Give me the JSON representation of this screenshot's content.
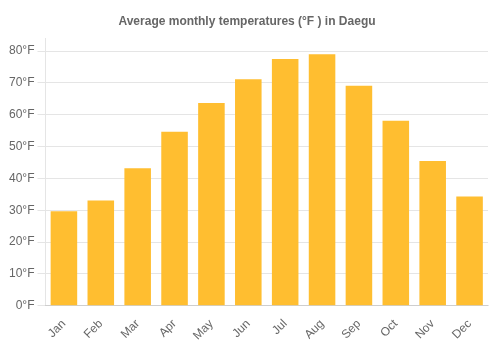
{
  "chart_data": {
    "type": "bar",
    "title": "Average monthly temperatures (°F ) in Daegu",
    "categories": [
      "Jan",
      "Feb",
      "Mar",
      "Apr",
      "May",
      "Jun",
      "Jul",
      "Aug",
      "Sep",
      "Oct",
      "Nov",
      "Dec"
    ],
    "values": [
      29.7,
      33.1,
      43.2,
      54.7,
      63.7,
      71.2,
      77.5,
      79.0,
      69.1,
      58.1,
      45.5,
      34.3
    ],
    "color": "#FFBE30",
    "ylim": [
      0,
      84
    ],
    "yticks": [
      {
        "value": 0,
        "label": "0°F"
      },
      {
        "value": 10,
        "label": "10°F"
      },
      {
        "value": 20,
        "label": "20°F"
      },
      {
        "value": 30,
        "label": "30°F"
      },
      {
        "value": 40,
        "label": "40°F"
      },
      {
        "value": 50,
        "label": "50°F"
      },
      {
        "value": 60,
        "label": "60°F"
      },
      {
        "value": 70,
        "label": "70°F"
      },
      {
        "value": 80,
        "label": "80°F"
      }
    ],
    "grid": true
  }
}
